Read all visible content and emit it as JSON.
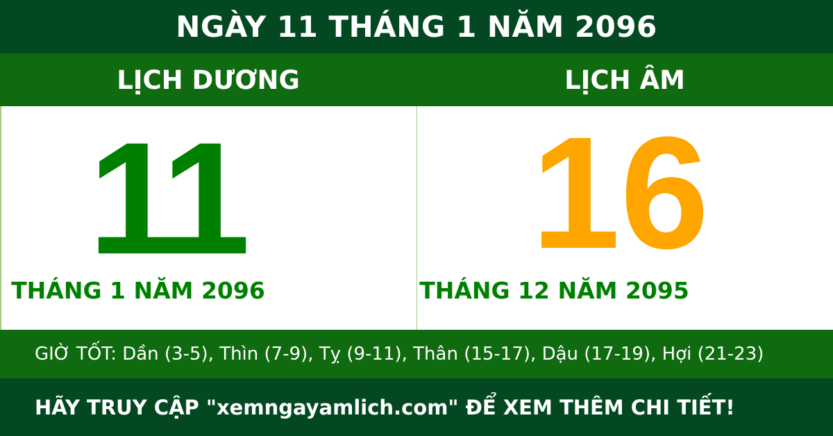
{
  "title": "NGÀY 11 THÁNG 1 NĂM 2096",
  "solar": {
    "label": "LỊCH DƯƠNG",
    "day": "11",
    "month_year": "THÁNG 1 NĂM 2096"
  },
  "lunar": {
    "label": "LỊCH ÂM",
    "day": "16",
    "month_year": "THÁNG 12 NĂM 2095"
  },
  "good_hours": "GIỜ TỐT: Dần (3-5), Thìn (7-9), Tỵ (9-11), Thân (15-17), Dậu (17-19), Hợi (21-23)",
  "footer": "HÃY TRUY CẬP \"xemngayamlich.com\" ĐỂ XEM THÊM CHI TIẾT!",
  "colors": {
    "dark_green": "#044822",
    "green": "#106b10",
    "solar_day": "#008000",
    "lunar_day": "#ffa500"
  }
}
